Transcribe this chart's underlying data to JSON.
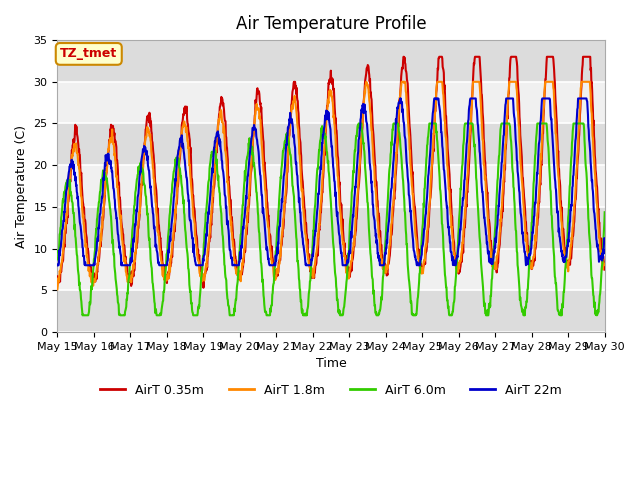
{
  "title": "Air Temperature Profile",
  "xlabel": "Time",
  "ylabel": "Air Temperature (C)",
  "ylim": [
    0,
    35
  ],
  "series": {
    "AirT 0.35m": {
      "color": "#cc0000",
      "lw": 1.5
    },
    "AirT 1.8m": {
      "color": "#ff8800",
      "lw": 1.5
    },
    "AirT 6.0m": {
      "color": "#33cc00",
      "lw": 1.5
    },
    "AirT 22m": {
      "color": "#0000cc",
      "lw": 1.5
    }
  },
  "annotation_text": "TZ_tmet",
  "annotation_color": "#cc0000",
  "annotation_bg": "#ffffcc",
  "annotation_edge": "#cc8800",
  "plot_bg_light": "#f0f0f0",
  "plot_bg_dark": "#dcdcdc",
  "title_fontsize": 12,
  "axis_fontsize": 9,
  "tick_fontsize": 8,
  "legend_fontsize": 9,
  "n_days": 15,
  "points_per_day": 96,
  "xtick_labels": [
    "May 15",
    "May 16",
    "May 17",
    "May 18",
    "May 19",
    "May 20",
    "May 21",
    "May 22",
    "May 23",
    "May 24",
    "May 25",
    "May 26",
    "May 27",
    "May 28",
    "May 29",
    "May 30"
  ]
}
